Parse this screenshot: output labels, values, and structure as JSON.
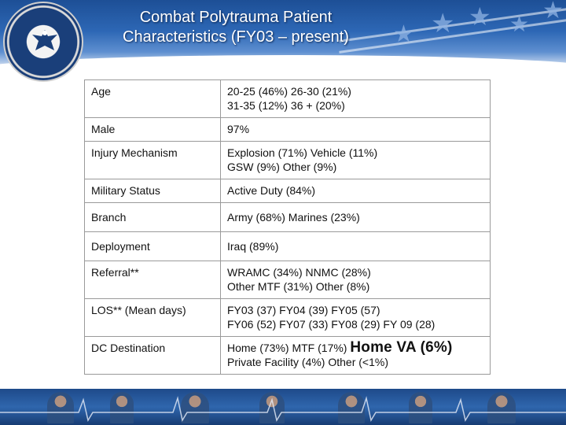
{
  "header": {
    "title_line1": "Combat Polytrauma Patient",
    "title_line2": "Characteristics (FY03 – present)",
    "logo_text": "DEPARTMENT OF VETERANS AFFAIRS · UNITED STATES OF AMERICA"
  },
  "colors": {
    "banner": "#2d67b5",
    "footer": "#1e4a8a",
    "border": "#9a9a9a"
  },
  "table": {
    "rows": [
      {
        "label": "Age",
        "line1": "20-25 (46%)   26-30 (21%)",
        "line2": "31-35 (12%)   36 + (20%)"
      },
      {
        "label": "Male",
        "line1": "97%",
        "line2": ""
      },
      {
        "label": "Injury Mechanism",
        "line1": "Explosion (71%) Vehicle (11%)",
        "line2": "GSW (9%) Other (9%)"
      },
      {
        "label": "Military Status",
        "line1": "Active Duty (84%)",
        "line2": ""
      },
      {
        "label": "Branch",
        "line1": "Army (68%) Marines (23%)",
        "line2": ""
      },
      {
        "label": "Deployment",
        "line1": "Iraq (89%)",
        "line2": ""
      },
      {
        "label": "Referral**",
        "line1": "WRAMC (34%) NNMC (28%)",
        "line2": "Other MTF (31%) Other (8%)"
      },
      {
        "label": "LOS** (Mean days)",
        "line1": "FY03 (37)   FY04 (39)   FY05 (57)",
        "line2": "FY06 (52)   FY07 (33)   FY08 (29)   FY 09 (28)"
      },
      {
        "label": "DC Destination",
        "line1a": "Home (73%) MTF (17%) ",
        "line1b": "Home VA (6%)",
        "line2": "Private Facility (4%) Other (<1%)"
      }
    ]
  }
}
